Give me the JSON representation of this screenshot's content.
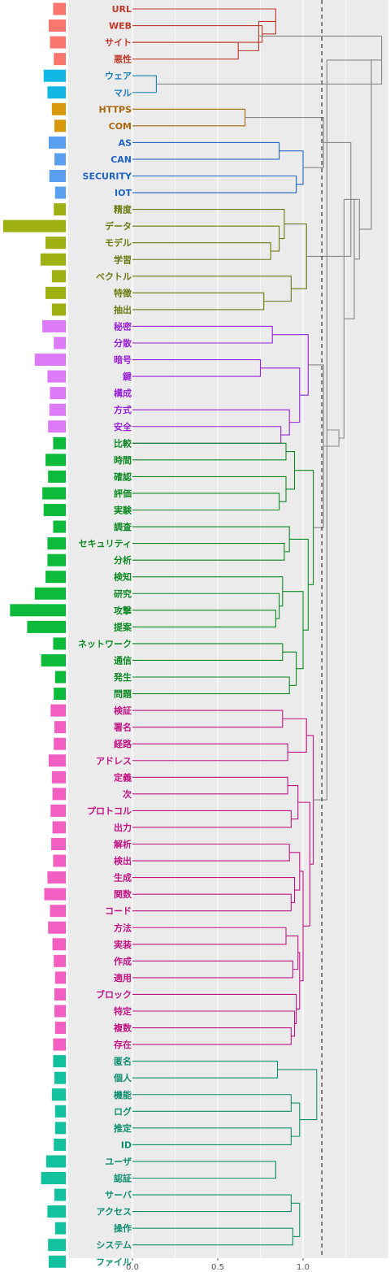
{
  "chart_data": {
    "type": "dendrogram",
    "title": "",
    "xlabel": "",
    "ylabel": "",
    "x_ticks": [
      {
        "value": 0.0,
        "label": "0.0"
      },
      {
        "value": 0.5,
        "label": "0.5"
      },
      {
        "value": 1.0,
        "label": "1.0"
      }
    ],
    "xlim": [
      0,
      1.5
    ],
    "cut_height": 1.11,
    "grid": true,
    "colors": {
      "c1": "#c0392b",
      "c1bar": "#f8766d",
      "c2": "#1a7fb5",
      "c2bar": "#12b7e6",
      "c3": "#a8660a",
      "c3bar": "#d89a0c",
      "c4": "#1f63c4",
      "c4bar": "#5b9ff0",
      "c5": "#6b7a10",
      "c5bar": "#9fb012",
      "c6": "#9a22d8",
      "c6bar": "#dd7af8",
      "c7": "#0c8a22",
      "c7bar": "#0cbb3a",
      "c8": "#c21485",
      "c8bar": "#f25ec2",
      "c9": "#0f8f70",
      "c9bar": "#12c29e",
      "top": "#888888"
    },
    "leaves": [
      {
        "label": "URL",
        "c": "c1",
        "f": 0.2
      },
      {
        "label": "WEB",
        "c": "c1",
        "f": 0.27
      },
      {
        "label": "サイト",
        "c": "c1",
        "f": 0.25
      },
      {
        "label": "悪性",
        "c": "c1",
        "f": 0.19
      },
      {
        "label": "ウェア",
        "c": "c2",
        "f": 0.35
      },
      {
        "label": "マル",
        "c": "c2",
        "f": 0.29
      },
      {
        "label": "HTTPS",
        "c": "c3",
        "f": 0.22
      },
      {
        "label": "COM",
        "c": "c3",
        "f": 0.18
      },
      {
        "label": "AS",
        "c": "c4",
        "f": 0.27
      },
      {
        "label": "CAN",
        "c": "c4",
        "f": 0.18
      },
      {
        "label": "SECURITY",
        "c": "c4",
        "f": 0.26
      },
      {
        "label": "IOT",
        "c": "c4",
        "f": 0.17
      },
      {
        "label": "精度",
        "c": "c5",
        "f": 0.19
      },
      {
        "label": "データ",
        "c": "c5",
        "f": 0.99
      },
      {
        "label": "モデル",
        "c": "c5",
        "f": 0.32
      },
      {
        "label": "学習",
        "c": "c5",
        "f": 0.4
      },
      {
        "label": "ベクトル",
        "c": "c5",
        "f": 0.22
      },
      {
        "label": "特徴",
        "c": "c5",
        "f": 0.32
      },
      {
        "label": "抽出",
        "c": "c5",
        "f": 0.22
      },
      {
        "label": "秘密",
        "c": "c6",
        "f": 0.37
      },
      {
        "label": "分散",
        "c": "c6",
        "f": 0.19
      },
      {
        "label": "暗号",
        "c": "c6",
        "f": 0.49
      },
      {
        "label": "鍵",
        "c": "c6",
        "f": 0.29
      },
      {
        "label": "構成",
        "c": "c6",
        "f": 0.25
      },
      {
        "label": "方式",
        "c": "c6",
        "f": 0.26
      },
      {
        "label": "安全",
        "c": "c6",
        "f": 0.28
      },
      {
        "label": "比較",
        "c": "c7",
        "f": 0.2
      },
      {
        "label": "時間",
        "c": "c7",
        "f": 0.32
      },
      {
        "label": "確認",
        "c": "c7",
        "f": 0.28
      },
      {
        "label": "評価",
        "c": "c7",
        "f": 0.37
      },
      {
        "label": "実験",
        "c": "c7",
        "f": 0.35
      },
      {
        "label": "調査",
        "c": "c7",
        "f": 0.2
      },
      {
        "label": "セキュリティ",
        "c": "c7",
        "f": 0.29
      },
      {
        "label": "分析",
        "c": "c7",
        "f": 0.29
      },
      {
        "label": "検知",
        "c": "c7",
        "f": 0.32
      },
      {
        "label": "研究",
        "c": "c7",
        "f": 0.49
      },
      {
        "label": "攻撃",
        "c": "c7",
        "f": 0.88
      },
      {
        "label": "提案",
        "c": "c7",
        "f": 0.61
      },
      {
        "label": "ネットワーク",
        "c": "c7",
        "f": 0.2
      },
      {
        "label": "通信",
        "c": "c7",
        "f": 0.39
      },
      {
        "label": "発生",
        "c": "c7",
        "f": 0.17
      },
      {
        "label": "問題",
        "c": "c7",
        "f": 0.19
      },
      {
        "label": "検証",
        "c": "c8",
        "f": 0.24
      },
      {
        "label": "署名",
        "c": "c8",
        "f": 0.18
      },
      {
        "label": "経路",
        "c": "c8",
        "f": 0.19
      },
      {
        "label": "アドレス",
        "c": "c8",
        "f": 0.27
      },
      {
        "label": "定義",
        "c": "c8",
        "f": 0.22
      },
      {
        "label": "次",
        "c": "c8",
        "f": 0.21
      },
      {
        "label": "プロトコル",
        "c": "c8",
        "f": 0.24
      },
      {
        "label": "出力",
        "c": "c8",
        "f": 0.21
      },
      {
        "label": "解析",
        "c": "c8",
        "f": 0.23
      },
      {
        "label": "検出",
        "c": "c8",
        "f": 0.2
      },
      {
        "label": "生成",
        "c": "c8",
        "f": 0.29
      },
      {
        "label": "関数",
        "c": "c8",
        "f": 0.34
      },
      {
        "label": "コード",
        "c": "c8",
        "f": 0.25
      },
      {
        "label": "方法",
        "c": "c8",
        "f": 0.28
      },
      {
        "label": "実装",
        "c": "c8",
        "f": 0.21
      },
      {
        "label": "作成",
        "c": "c8",
        "f": 0.19
      },
      {
        "label": "適用",
        "c": "c8",
        "f": 0.17
      },
      {
        "label": "ブロック",
        "c": "c8",
        "f": 0.18
      },
      {
        "label": "特定",
        "c": "c8",
        "f": 0.18
      },
      {
        "label": "複数",
        "c": "c8",
        "f": 0.17
      },
      {
        "label": "存在",
        "c": "c8",
        "f": 0.2
      },
      {
        "label": "匿名",
        "c": "c9",
        "f": 0.2
      },
      {
        "label": "個人",
        "c": "c9",
        "f": 0.18
      },
      {
        "label": "機能",
        "c": "c9",
        "f": 0.22
      },
      {
        "label": "ログ",
        "c": "c9",
        "f": 0.17
      },
      {
        "label": "推定",
        "c": "c9",
        "f": 0.17
      },
      {
        "label": "ID",
        "c": "c9",
        "f": 0.19
      },
      {
        "label": "ユーザ",
        "c": "c9",
        "f": 0.31
      },
      {
        "label": "認証",
        "c": "c9",
        "f": 0.39
      },
      {
        "label": "サーバ",
        "c": "c9",
        "f": 0.18
      },
      {
        "label": "アクセス",
        "c": "c9",
        "f": 0.29
      },
      {
        "label": "操作",
        "c": "c9",
        "f": 0.17
      },
      {
        "label": "システム",
        "c": "c9",
        "f": 0.28
      },
      {
        "label": "ファイル",
        "c": "c9",
        "f": 0.27
      }
    ],
    "merges": [
      {
        "c": "c1",
        "h": 0.76,
        "a": "L1",
        "b": "L2"
      },
      {
        "c": "c1",
        "h": 0.62,
        "a": "L2",
        "b": "L3"
      },
      {
        "c": "c1",
        "h": 0.84,
        "a": "L0",
        "b": "M0"
      },
      {
        "c": "c1",
        "h": 0.74,
        "a": "M2",
        "b": "M1"
      },
      {
        "c": "c2",
        "h": 0.14,
        "a": "L4",
        "b": "L5"
      },
      {
        "c": "c3",
        "h": 0.66,
        "a": "L6",
        "b": "L7"
      },
      {
        "c": "c4",
        "h": 0.86,
        "a": "L8",
        "b": "L9"
      },
      {
        "c": "c4",
        "h": 0.96,
        "a": "L10",
        "b": "L11"
      },
      {
        "c": "c4",
        "h": 1.0,
        "a": "M6",
        "b": "M7"
      },
      {
        "c": "c5",
        "h": 0.81,
        "a": "L14",
        "b": "L15"
      },
      {
        "c": "c5",
        "h": 0.86,
        "a": "L13",
        "b": "M9"
      },
      {
        "c": "c5",
        "h": 0.89,
        "a": "L12",
        "b": "M10"
      },
      {
        "c": "c5",
        "h": 0.77,
        "a": "L17",
        "b": "L18"
      },
      {
        "c": "c5",
        "h": 0.93,
        "a": "L16",
        "b": "M12"
      },
      {
        "c": "c5",
        "h": 1.02,
        "a": "M11",
        "b": "M13"
      },
      {
        "c": "c6",
        "h": 0.82,
        "a": "L19",
        "b": "L20"
      },
      {
        "c": "c6",
        "h": 0.75,
        "a": "L21",
        "b": "L22"
      },
      {
        "c": "c6",
        "h": 0.87,
        "a": "L25",
        "b": "L26"
      },
      {
        "c": "c6",
        "h": 0.92,
        "a": "L24",
        "b": "M17"
      },
      {
        "c": "c6",
        "h": 0.98,
        "a": "M16",
        "b": "M18"
      },
      {
        "c": "c6",
        "h": 1.03,
        "a": "M15",
        "b": "M19"
      },
      {
        "c": "c7",
        "h": 0.86,
        "a": "L29",
        "b": "L30"
      },
      {
        "c": "c7",
        "h": 0.9,
        "a": "L28",
        "b": "M21"
      },
      {
        "c": "c7",
        "h": 0.9,
        "a": "L26",
        "b": "L27"
      },
      {
        "c": "c7",
        "h": 0.95,
        "a": "M23",
        "b": "M22"
      },
      {
        "c": "c7",
        "h": 0.89,
        "a": "L32",
        "b": "L33"
      },
      {
        "c": "c7",
        "h": 0.92,
        "a": "L31",
        "b": "M25"
      },
      {
        "c": "c7",
        "h": 0.84,
        "a": "L36",
        "b": "L37"
      },
      {
        "c": "c7",
        "h": 0.86,
        "a": "L35",
        "b": "M27"
      },
      {
        "c": "c7",
        "h": 0.88,
        "a": "L34",
        "b": "M28"
      },
      {
        "c": "c7",
        "h": 0.88,
        "a": "L38",
        "b": "L39"
      },
      {
        "c": "c7",
        "h": 0.92,
        "a": "L40",
        "b": "L41"
      },
      {
        "c": "c7",
        "h": 0.96,
        "a": "M30",
        "b": "M31"
      },
      {
        "c": "c7",
        "h": 1.0,
        "a": "M29",
        "b": "M32"
      },
      {
        "c": "c7",
        "h": 1.03,
        "a": "M26",
        "b": "M33"
      },
      {
        "c": "c7",
        "h": 1.06,
        "a": "M24",
        "b": "M34"
      },
      {
        "c": "c8",
        "h": 0.88,
        "a": "L42",
        "b": "L43"
      },
      {
        "c": "c8",
        "h": 0.91,
        "a": "L44",
        "b": "L45"
      },
      {
        "c": "c8",
        "h": 1.02,
        "a": "M36",
        "b": "M37"
      },
      {
        "c": "c8",
        "h": 0.91,
        "a": "L46",
        "b": "L47"
      },
      {
        "c": "c8",
        "h": 0.93,
        "a": "L48",
        "b": "L49"
      },
      {
        "c": "c8",
        "h": 0.97,
        "a": "M39",
        "b": "M40"
      },
      {
        "c": "c8",
        "h": 0.92,
        "a": "L50",
        "b": "L51"
      },
      {
        "c": "c8",
        "h": 0.93,
        "a": "L53",
        "b": "L54"
      },
      {
        "c": "c8",
        "h": 0.95,
        "a": "L52",
        "b": "M43"
      },
      {
        "c": "c8",
        "h": 0.98,
        "a": "M42",
        "b": "M44"
      },
      {
        "c": "c8",
        "h": 0.9,
        "a": "L55",
        "b": "L56"
      },
      {
        "c": "c8",
        "h": 0.94,
        "a": "L57",
        "b": "L58"
      },
      {
        "c": "c8",
        "h": 0.97,
        "a": "M46",
        "b": "M47"
      },
      {
        "c": "c8",
        "h": 0.93,
        "a": "L61",
        "b": "L62"
      },
      {
        "c": "c8",
        "h": 0.95,
        "a": "L60",
        "b": "M49"
      },
      {
        "c": "c8",
        "h": 0.96,
        "a": "L59",
        "b": "M50"
      },
      {
        "c": "c8",
        "h": 0.98,
        "a": "M48",
        "b": "M51"
      },
      {
        "c": "c8",
        "h": 1.0,
        "a": "M45",
        "b": "M52"
      },
      {
        "c": "c8",
        "h": 1.04,
        "a": "M41",
        "b": "M53"
      },
      {
        "c": "c8",
        "h": 1.06,
        "a": "M38",
        "b": "M54"
      },
      {
        "c": "c9",
        "h": 0.85,
        "a": "L63",
        "b": "L64"
      },
      {
        "c": "c9",
        "h": 0.93,
        "a": "L65",
        "b": "L66"
      },
      {
        "c": "c9",
        "h": 0.93,
        "a": "L67",
        "b": "L68"
      },
      {
        "c": "c9",
        "h": 0.98,
        "a": "M57",
        "b": "M58"
      },
      {
        "c": "c9",
        "h": 1.08,
        "a": "M56",
        "b": "M59"
      },
      {
        "c": "c9",
        "h": 0.84,
        "a": "L69",
        "b": "L70"
      },
      {
        "c": "c9",
        "h": 0.93,
        "a": "L71",
        "b": "L72"
      },
      {
        "c": "c9",
        "h": 0.94,
        "a": "L73",
        "b": "L74"
      },
      {
        "c": "c9",
        "h": 0.9,
        "a": "L75",
        "b": "L76"
      },
      {
        "c": "c9",
        "h": 0.94,
        "a": "M64",
        "b": "M65"
      },
      {
        "c": "c9",
        "h": 0.98,
        "a": "M62",
        "b": "M63"
      },
      {
        "c": "c9",
        "h": 1.0,
        "a": "M66",
        "b": "M67"
      },
      {
        "c": "c9",
        "h": 1.03,
        "a": "M61",
        "b": "M68"
      },
      {
        "c": "c9",
        "h": 1.1,
        "a": "M60",
        "b": "M69"
      },
      {
        "c": "top",
        "h": 1.46,
        "a": "M3",
        "b": "M4"
      },
      {
        "c": "top",
        "h": 1.12,
        "a": "M5",
        "b": "M8"
      },
      {
        "c": "top",
        "h": 1.28,
        "a": "M71",
        "b": "M14"
      },
      {
        "c": "top",
        "h": 1.12,
        "a": "M20",
        "b": "M35"
      },
      {
        "c": "top",
        "h": 1.14,
        "a": "M55",
        "b": "M70"
      },
      {
        "c": "top",
        "h": 1.21,
        "a": "M73",
        "b": "M74"
      },
      {
        "c": "top",
        "h": 1.24,
        "a": "M75",
        "b": "M72"
      },
      {
        "c": "top",
        "h": 1.3,
        "a": "M72",
        "b": "M76"
      },
      {
        "c": "top",
        "h": 1.33,
        "a": "M77",
        "b": "M72"
      },
      {
        "c": "top",
        "h": 1.4,
        "a": "M70",
        "b": "M78"
      }
    ]
  }
}
